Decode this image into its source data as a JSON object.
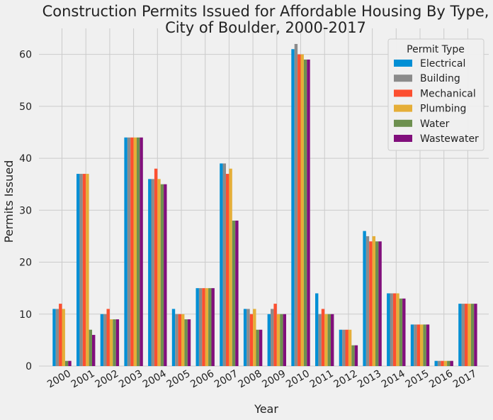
{
  "chart_data": {
    "type": "bar",
    "title_line1": "Construction Permits Issued for Affordable Housing By Type,",
    "title_line2": "City of Boulder, 2000-2017",
    "xlabel": "Year",
    "ylabel": "Permits Issued",
    "ylim": [
      0,
      65
    ],
    "yticks": [
      0,
      10,
      20,
      30,
      40,
      50,
      60
    ],
    "grid": true,
    "legend": {
      "title": "Permit Type",
      "placement": "top-right"
    },
    "categories": [
      "2000",
      "2001",
      "2002",
      "2003",
      "2004",
      "2005",
      "2006",
      "2007",
      "2008",
      "2009",
      "2010",
      "2011",
      "2012",
      "2013",
      "2014",
      "2015",
      "2016",
      "2017"
    ],
    "series": [
      {
        "name": "Electrical",
        "color": "#008fd5",
        "values": [
          11,
          37,
          10,
          44,
          36,
          11,
          15,
          39,
          11,
          10,
          61,
          14,
          7,
          26,
          14,
          8,
          1,
          12
        ]
      },
      {
        "name": "Building",
        "color": "#8b8b8b",
        "values": [
          11,
          37,
          10,
          44,
          36,
          10,
          15,
          39,
          11,
          11,
          62,
          10,
          7,
          25,
          14,
          8,
          1,
          12
        ]
      },
      {
        "name": "Mechanical",
        "color": "#fc4f30",
        "values": [
          12,
          37,
          11,
          44,
          38,
          10,
          15,
          37,
          10,
          12,
          60,
          11,
          7,
          24,
          14,
          8,
          1,
          12
        ]
      },
      {
        "name": "Plumbing",
        "color": "#e5ae38",
        "values": [
          11,
          37,
          9,
          44,
          36,
          10,
          15,
          38,
          11,
          10,
          60,
          10,
          7,
          25,
          14,
          8,
          1,
          12
        ]
      },
      {
        "name": "Water",
        "color": "#6d904f",
        "values": [
          1,
          7,
          9,
          44,
          35,
          9,
          15,
          28,
          7,
          10,
          59,
          10,
          4,
          24,
          13,
          8,
          1,
          12
        ]
      },
      {
        "name": "Wastewater",
        "color": "#810f7c",
        "values": [
          1,
          6,
          9,
          44,
          35,
          9,
          15,
          28,
          7,
          10,
          59,
          10,
          4,
          24,
          13,
          8,
          1,
          12
        ]
      }
    ]
  }
}
